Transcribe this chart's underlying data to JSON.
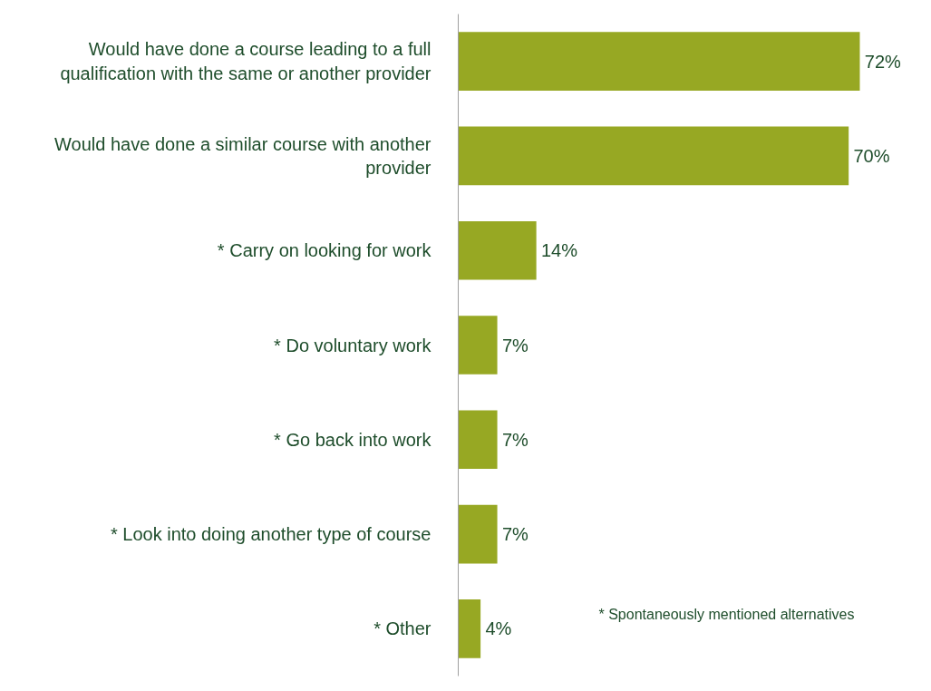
{
  "chart_data": {
    "type": "bar",
    "orientation": "horizontal",
    "categories": [
      "Would have done a course leading to a full qualification with the same or another provider",
      "Would have done a similar course with another provider",
      "* Carry on looking for work",
      "* Do voluntary work",
      "* Go back into work",
      "* Look into doing another type of course",
      "* Other"
    ],
    "values": [
      72,
      70,
      14,
      7,
      7,
      7,
      4
    ],
    "value_labels": [
      "72%",
      "70%",
      "14%",
      "7%",
      "7%",
      "7%",
      "4%"
    ],
    "color": "#97a823",
    "grid": false,
    "annotations": [
      "* Spontaneously mentioned alternatives"
    ]
  }
}
